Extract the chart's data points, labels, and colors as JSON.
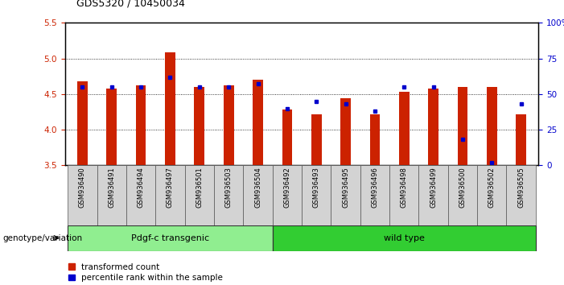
{
  "title": "GDS5320 / 10450034",
  "samples": [
    "GSM936490",
    "GSM936491",
    "GSM936494",
    "GSM936497",
    "GSM936501",
    "GSM936503",
    "GSM936504",
    "GSM936492",
    "GSM936493",
    "GSM936495",
    "GSM936496",
    "GSM936498",
    "GSM936499",
    "GSM936500",
    "GSM936502",
    "GSM936505"
  ],
  "transformed_count": [
    4.68,
    4.58,
    4.62,
    5.08,
    4.6,
    4.62,
    4.7,
    4.28,
    4.22,
    4.44,
    4.22,
    4.53,
    4.58,
    4.6,
    4.6,
    4.22
  ],
  "percentile_rank": [
    55,
    55,
    55,
    62,
    55,
    55,
    57,
    40,
    45,
    43,
    38,
    55,
    55,
    18,
    2,
    43
  ],
  "groups": [
    {
      "label": "Pdgf-c transgenic",
      "start": 0,
      "end": 7,
      "color": "#90ee90"
    },
    {
      "label": "wild type",
      "start": 7,
      "end": 16,
      "color": "#32cd32"
    }
  ],
  "bar_color": "#cc2200",
  "marker_color": "#0000cc",
  "ylim_left": [
    3.5,
    5.5
  ],
  "ylim_right": [
    0,
    100
  ],
  "yticks_left": [
    3.5,
    4.0,
    4.5,
    5.0,
    5.5
  ],
  "yticks_right": [
    0,
    25,
    50,
    75,
    100
  ],
  "ytick_labels_right": [
    "0",
    "25",
    "50",
    "75",
    "100%"
  ],
  "bar_width": 0.35,
  "background_color": "#ffffff",
  "bar_color_red": "#cc2200",
  "marker_color_blue": "#0000cc",
  "legend_red_label": "transformed count",
  "legend_blue_label": "percentile rank within the sample",
  "genotype_label": "genotype/variation",
  "xlabel_color": "#cc2200",
  "ylabel_right_color": "#0000cc"
}
